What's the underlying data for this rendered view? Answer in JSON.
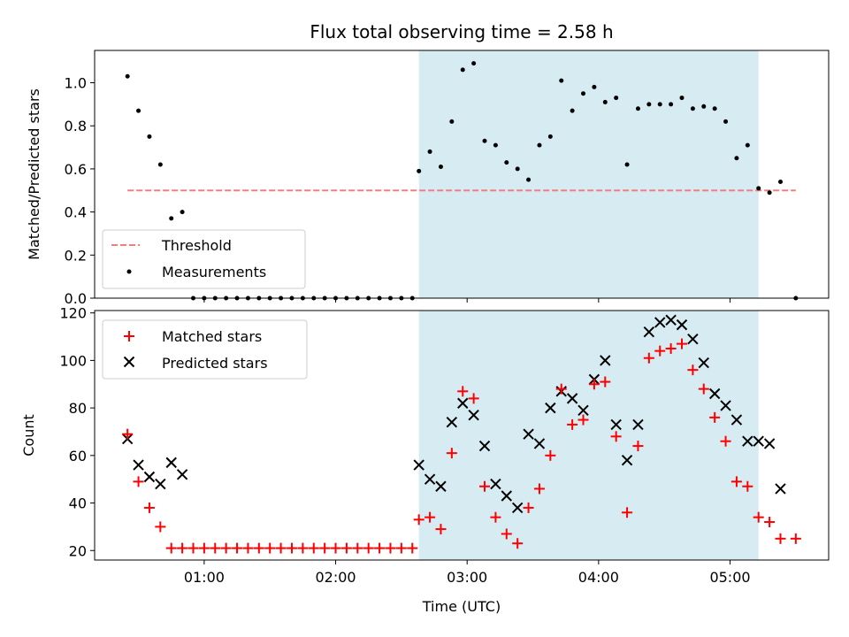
{
  "title": "Flux total observing time = 2.58 h",
  "colors": {
    "threshold": "#f08080",
    "measurements": "#000000",
    "matched": "#ff0000",
    "predicted": "#000000",
    "shade": "#add8e6"
  },
  "chart_data": [
    {
      "type": "scatter",
      "ylabel": "Matched/Predicted stars",
      "xlabel": "",
      "xlim": [
        "00:10",
        "05:45"
      ],
      "ylim": [
        0,
        1.15
      ],
      "yticks": [
        "0.0",
        "0.2",
        "0.4",
        "0.6",
        "0.8",
        "1.0"
      ],
      "x_tick_labels_shown": false,
      "shaded_interval": [
        "02:38",
        "05:13"
      ],
      "legend_position": "lower-left",
      "threshold": {
        "name": "Threshold",
        "value": 0.5,
        "x_range": [
          "00:25",
          "05:30"
        ],
        "style": "dashed"
      },
      "series": [
        {
          "name": "Measurements",
          "x": [
            "00:25",
            "00:30",
            "00:35",
            "00:40",
            "00:45",
            "00:50",
            "00:55",
            "01:00",
            "01:05",
            "01:10",
            "01:15",
            "01:20",
            "01:25",
            "01:30",
            "01:35",
            "01:40",
            "01:45",
            "01:50",
            "01:55",
            "02:00",
            "02:05",
            "02:10",
            "02:15",
            "02:20",
            "02:25",
            "02:30",
            "02:35",
            "02:38",
            "02:43",
            "02:48",
            "02:53",
            "02:58",
            "03:03",
            "03:08",
            "03:13",
            "03:18",
            "03:23",
            "03:28",
            "03:33",
            "03:38",
            "03:43",
            "03:48",
            "03:53",
            "03:58",
            "04:03",
            "04:08",
            "04:13",
            "04:18",
            "04:23",
            "04:28",
            "04:33",
            "04:38",
            "04:43",
            "04:48",
            "04:53",
            "04:58",
            "05:03",
            "05:08",
            "05:13",
            "05:18",
            "05:23",
            "05:30"
          ],
          "y": [
            1.03,
            0.87,
            0.75,
            0.62,
            0.37,
            0.4,
            0,
            0,
            0,
            0,
            0,
            0,
            0,
            0,
            0,
            0,
            0,
            0,
            0,
            0,
            0,
            0,
            0,
            0,
            0,
            0,
            0,
            0.59,
            0.68,
            0.61,
            0.82,
            1.06,
            1.09,
            0.73,
            0.71,
            0.63,
            0.6,
            0.55,
            0.71,
            0.75,
            1.01,
            0.87,
            0.95,
            0.98,
            0.91,
            0.93,
            0.62,
            0.88,
            0.9,
            0.9,
            0.9,
            0.93,
            0.88,
            0.89,
            0.88,
            0.82,
            0.65,
            0.71,
            0.51,
            0.49,
            0.54,
            0
          ]
        }
      ]
    },
    {
      "type": "scatter",
      "ylabel": "Count",
      "xlabel": "Time (UTC)",
      "xlim": [
        "00:10",
        "05:45"
      ],
      "ylim": [
        16,
        121
      ],
      "yticks": [
        "20",
        "40",
        "60",
        "80",
        "100",
        "120"
      ],
      "xticks": [
        "01:00",
        "02:00",
        "03:00",
        "04:00",
        "05:00"
      ],
      "shaded_interval": [
        "02:38",
        "05:13"
      ],
      "legend_position": "upper-left",
      "series": [
        {
          "name": "Matched stars",
          "marker": "plus",
          "x": [
            "00:25",
            "00:30",
            "00:35",
            "00:40",
            "00:45",
            "00:50",
            "00:55",
            "01:00",
            "01:05",
            "01:10",
            "01:15",
            "01:20",
            "01:25",
            "01:30",
            "01:35",
            "01:40",
            "01:45",
            "01:50",
            "01:55",
            "02:00",
            "02:05",
            "02:10",
            "02:15",
            "02:20",
            "02:25",
            "02:30",
            "02:35",
            "02:38",
            "02:43",
            "02:48",
            "02:53",
            "02:58",
            "03:03",
            "03:08",
            "03:13",
            "03:18",
            "03:23",
            "03:28",
            "03:33",
            "03:38",
            "03:43",
            "03:48",
            "03:53",
            "03:58",
            "04:03",
            "04:08",
            "04:13",
            "04:18",
            "04:23",
            "04:28",
            "04:33",
            "04:38",
            "04:43",
            "04:48",
            "04:53",
            "04:58",
            "05:03",
            "05:08",
            "05:13",
            "05:18",
            "05:23",
            "05:30"
          ],
          "y": [
            69,
            49,
            38,
            30,
            21,
            21,
            21,
            21,
            21,
            21,
            21,
            21,
            21,
            21,
            21,
            21,
            21,
            21,
            21,
            21,
            21,
            21,
            21,
            21,
            21,
            21,
            21,
            33,
            34,
            29,
            61,
            87,
            84,
            47,
            34,
            27,
            23,
            38,
            46,
            60,
            88,
            73,
            75,
            90,
            91,
            68,
            36,
            64,
            101,
            104,
            105,
            107,
            96,
            88,
            76,
            66,
            49,
            47,
            34,
            32,
            25,
            25
          ]
        },
        {
          "name": "Predicted stars",
          "marker": "x",
          "x": [
            "00:25",
            "00:30",
            "00:35",
            "00:40",
            "00:45",
            "00:50",
            "02:38",
            "02:43",
            "02:48",
            "02:53",
            "02:58",
            "03:03",
            "03:08",
            "03:13",
            "03:18",
            "03:23",
            "03:28",
            "03:33",
            "03:38",
            "03:43",
            "03:48",
            "03:53",
            "03:58",
            "04:03",
            "04:08",
            "04:13",
            "04:18",
            "04:23",
            "04:28",
            "04:33",
            "04:38",
            "04:43",
            "04:48",
            "04:53",
            "04:58",
            "05:03",
            "05:08",
            "05:13",
            "05:18",
            "05:23"
          ],
          "y": [
            67,
            56,
            51,
            48,
            57,
            52,
            56,
            50,
            47,
            74,
            82,
            77,
            64,
            48,
            43,
            38,
            69,
            65,
            80,
            87,
            84,
            79,
            92,
            100,
            73,
            58,
            73,
            112,
            116,
            117,
            115,
            109,
            99,
            86,
            81,
            75,
            66,
            66,
            65,
            46
          ]
        }
      ]
    }
  ]
}
